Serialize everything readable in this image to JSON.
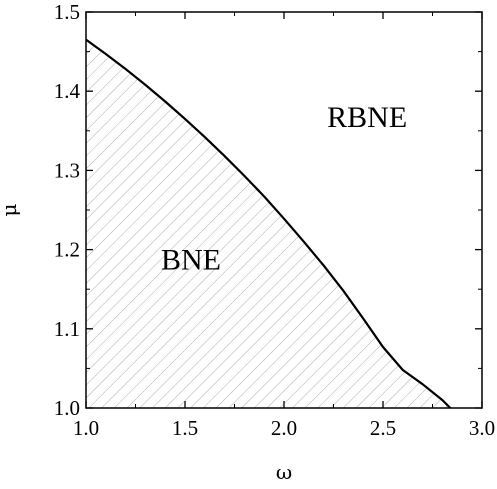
{
  "chart_data": {
    "type": "area",
    "xlabel": "ω",
    "ylabel": "μ",
    "xlim": [
      1.0,
      3.0
    ],
    "ylim": [
      1.0,
      1.5
    ],
    "x_ticks": [
      "1.0",
      "1.5",
      "2.0",
      "2.5",
      "3.0"
    ],
    "y_ticks": [
      "1.0",
      "1.1",
      "1.2",
      "1.3",
      "1.4",
      "1.5"
    ],
    "x_tick_values": [
      1.0,
      1.5,
      2.0,
      2.5,
      3.0
    ],
    "y_tick_values": [
      1.0,
      1.1,
      1.2,
      1.3,
      1.4,
      1.5
    ],
    "grid": false,
    "series": [
      {
        "x": [
          1.0,
          1.1,
          1.2,
          1.3,
          1.4,
          1.5,
          1.6,
          1.7,
          1.8,
          1.9,
          2.0,
          2.1,
          2.2,
          2.3,
          2.4,
          2.5,
          2.6,
          2.7,
          2.8,
          2.84
        ],
        "values": [
          1.465,
          1.447,
          1.428,
          1.408,
          1.387,
          1.365,
          1.342,
          1.318,
          1.293,
          1.267,
          1.239,
          1.21,
          1.18,
          1.148,
          1.113,
          1.077,
          1.048,
          1.03,
          1.01,
          1.0
        ],
        "color": "#000000",
        "fill": "hatched below curve"
      }
    ],
    "annotations": [
      {
        "text": "RBNE",
        "x": 2.42,
        "y": 1.355
      },
      {
        "text": "BNE",
        "x": 1.53,
        "y": 1.175
      }
    ]
  }
}
